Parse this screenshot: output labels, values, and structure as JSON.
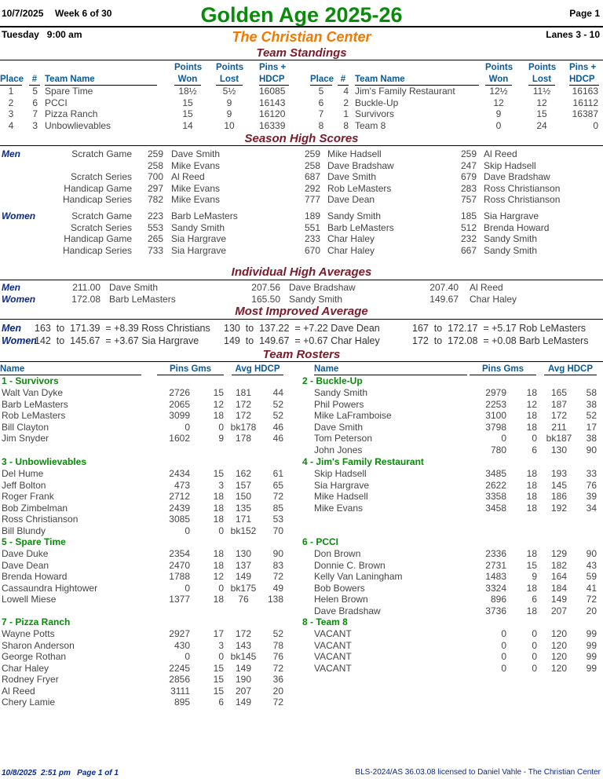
{
  "header": {
    "date": "10/7/2025",
    "week": "Week 6 of 30",
    "title": "Golden Age 2025-26",
    "page": "Page 1",
    "day_time": "Tuesday   9:00 am",
    "center": "The Christian Center",
    "lanes": "Lanes 3 - 10"
  },
  "standings": {
    "title": "Team Standings",
    "headers": {
      "place": "Place",
      "num": "#",
      "team": "Team Name",
      "points": "Points",
      "won": "Won",
      "lost": "Lost",
      "pins": "Pins +",
      "hdcp": "HDCP"
    },
    "left": [
      {
        "place": "1",
        "num": "5",
        "team": "Spare Time",
        "won": "18½",
        "lost": "5½",
        "pins": "16085"
      },
      {
        "place": "2",
        "num": "6",
        "team": "PCCI",
        "won": "15",
        "lost": "9",
        "pins": "16143"
      },
      {
        "place": "3",
        "num": "7",
        "team": "Pizza Ranch",
        "won": "15",
        "lost": "9",
        "pins": "16120"
      },
      {
        "place": "4",
        "num": "3",
        "team": "Unbowlievables",
        "won": "14",
        "lost": "10",
        "pins": "16339"
      }
    ],
    "right": [
      {
        "place": "5",
        "num": "4",
        "team": "Jim's Family Restaurant",
        "won": "12½",
        "lost": "11½",
        "pins": "16163"
      },
      {
        "place": "6",
        "num": "2",
        "team": "Buckle-Up",
        "won": "12",
        "lost": "12",
        "pins": "16112"
      },
      {
        "place": "7",
        "num": "1",
        "team": "Survivors",
        "won": "9",
        "lost": "15",
        "pins": "16387"
      },
      {
        "place": "8",
        "num": "8",
        "team": "Team 8",
        "won": "0",
        "lost": "24",
        "pins": "0"
      }
    ]
  },
  "high_scores": {
    "title": "Season High Scores",
    "groups": [
      {
        "label": "Men",
        "rows": [
          {
            "cat": "Scratch Game",
            "entries": [
              [
                "259",
                "Dave Smith"
              ],
              [
                "259",
                "Mike Hadsell"
              ],
              [
                "259",
                "Al Reed"
              ]
            ]
          },
          {
            "cat": "",
            "entries": [
              [
                "258",
                "Mike Evans"
              ],
              [
                "258",
                "Dave Bradshaw"
              ],
              [
                "247",
                "Skip Hadsell"
              ]
            ]
          },
          {
            "cat": "Scratch Series",
            "entries": [
              [
                "700",
                "Al Reed"
              ],
              [
                "687",
                "Dave Smith"
              ],
              [
                "679",
                "Dave Bradshaw"
              ]
            ]
          },
          {
            "cat": "Handicap Game",
            "entries": [
              [
                "297",
                "Mike Evans"
              ],
              [
                "292",
                "Rob LeMasters"
              ],
              [
                "283",
                "Ross Christianson"
              ]
            ]
          },
          {
            "cat": "Handicap Series",
            "entries": [
              [
                "782",
                "Mike Evans"
              ],
              [
                "777",
                "Dave Dean"
              ],
              [
                "757",
                "Ross Christianson"
              ]
            ]
          }
        ]
      },
      {
        "label": "Women",
        "rows": [
          {
            "cat": "Scratch Game",
            "entries": [
              [
                "223",
                "Barb LeMasters"
              ],
              [
                "189",
                "Sandy Smith"
              ],
              [
                "185",
                "Sia Hargrave"
              ]
            ]
          },
          {
            "cat": "Scratch Series",
            "entries": [
              [
                "553",
                "Sandy Smith"
              ],
              [
                "551",
                "Barb LeMasters"
              ],
              [
                "512",
                "Brenda Howard"
              ]
            ]
          },
          {
            "cat": "Handicap Game",
            "entries": [
              [
                "265",
                "Sia Hargrave"
              ],
              [
                "233",
                "Char Haley"
              ],
              [
                "232",
                "Sandy Smith"
              ]
            ]
          },
          {
            "cat": "Handicap Series",
            "entries": [
              [
                "733",
                "Sia Hargrave"
              ],
              [
                "670",
                "Char Haley"
              ],
              [
                "667",
                "Sandy Smith"
              ]
            ]
          }
        ]
      }
    ]
  },
  "high_averages": {
    "title": "Individual High Averages",
    "rows": [
      {
        "label": "Men",
        "entries": [
          [
            "211.00",
            "Dave Smith"
          ],
          [
            "207.56",
            "Dave Bradshaw"
          ],
          [
            "207.40",
            "Al Reed"
          ]
        ]
      },
      {
        "label": "Women",
        "entries": [
          [
            "172.08",
            "Barb LeMasters"
          ],
          [
            "165.50",
            "Sandy Smith"
          ],
          [
            "149.67",
            "Char Haley"
          ]
        ]
      }
    ]
  },
  "most_improved": {
    "title": "Most Improved Average",
    "rows": [
      {
        "label": "Men",
        "entries": [
          "163  to  171.39  = +8.39 Ross Christians",
          "130  to  137.22  = +7.22 Dave Dean",
          "167  to  172.17  = +5.17 Rob LeMasters"
        ]
      },
      {
        "label": "Women",
        "entries": [
          "142  to  145.67  = +3.67 Sia Hargrave",
          "149  to  149.67  = +0.67 Char Haley",
          "172  to  172.08  = +0.08 Barb LeMasters"
        ]
      }
    ]
  },
  "rosters": {
    "title": "Team Rosters",
    "headers": {
      "name": "Name",
      "pins_gms": "Pins  Gms",
      "avg_hdcp": "Avg HDCP"
    },
    "left": [
      {
        "team": "1 - Survivors",
        "players": [
          [
            "Walt Van Dyke",
            "2726",
            "15",
            "181",
            "44"
          ],
          [
            "Barb LeMasters",
            "2065",
            "12",
            "172",
            "52"
          ],
          [
            "Rob LeMasters",
            "3099",
            "18",
            "172",
            "52"
          ],
          [
            "Bill Clayton",
            "0",
            "0",
            "bk178",
            "46"
          ],
          [
            "Jim Snyder",
            "1602",
            "9",
            "178",
            "46"
          ]
        ]
      },
      {
        "team": "3 - Unbowlievables",
        "players": [
          [
            "Del Hume",
            "2434",
            "15",
            "162",
            "61"
          ],
          [
            "Jeff Bolton",
            "473",
            "3",
            "157",
            "65"
          ],
          [
            "Roger Frank",
            "2712",
            "18",
            "150",
            "72"
          ],
          [
            "Bob Zimbelman",
            "2439",
            "18",
            "135",
            "85"
          ],
          [
            "Ross Christianson",
            "3085",
            "18",
            "171",
            "53"
          ],
          [
            "Bill Blundy",
            "0",
            "0",
            "bk152",
            "70"
          ]
        ]
      },
      {
        "team": "5 - Spare Time",
        "players": [
          [
            "Dave Duke",
            "2354",
            "18",
            "130",
            "90"
          ],
          [
            "Dave Dean",
            "2470",
            "18",
            "137",
            "83"
          ],
          [
            "Brenda Howard",
            "1788",
            "12",
            "149",
            "72"
          ],
          [
            "Cassaundra Hightower",
            "0",
            "0",
            "bk175",
            "49"
          ],
          [
            "Lowell Miese",
            "1377",
            "18",
            "76",
            "138"
          ]
        ]
      },
      {
        "team": "7 - Pizza Ranch",
        "players": [
          [
            "Wayne Potts",
            "2927",
            "17",
            "172",
            "52"
          ],
          [
            "Sharon Anderson",
            "430",
            "3",
            "143",
            "78"
          ],
          [
            "George Rothan",
            "0",
            "0",
            "bk145",
            "76"
          ],
          [
            "Char Haley",
            "2245",
            "15",
            "149",
            "72"
          ],
          [
            "Rodney Fryer",
            "2856",
            "15",
            "190",
            "36"
          ],
          [
            "Al Reed",
            "3111",
            "15",
            "207",
            "20"
          ],
          [
            "Chery Lamie",
            "895",
            "6",
            "149",
            "72"
          ]
        ]
      }
    ],
    "right": [
      {
        "team": "2 - Buckle-Up",
        "players": [
          [
            "Sandy Smith",
            "2979",
            "18",
            "165",
            "58"
          ],
          [
            "Phil Powers",
            "2253",
            "12",
            "187",
            "38"
          ],
          [
            "Mike LaFramboise",
            "3100",
            "18",
            "172",
            "52"
          ],
          [
            "Dave Smith",
            "3798",
            "18",
            "211",
            "17"
          ],
          [
            "Tom Peterson",
            "0",
            "0",
            "bk187",
            "38"
          ],
          [
            "John Jones",
            "780",
            "6",
            "130",
            "90"
          ]
        ]
      },
      {
        "team": "4 - Jim's Family Restaurant",
        "players": [
          [
            "Skip Hadsell",
            "3485",
            "18",
            "193",
            "33"
          ],
          [
            "Sia Hargrave",
            "2622",
            "18",
            "145",
            "76"
          ],
          [
            "Mike Hadsell",
            "3358",
            "18",
            "186",
            "39"
          ],
          [
            "Mike Evans",
            "3458",
            "18",
            "192",
            "34"
          ]
        ]
      },
      {
        "team": "6 - PCCI",
        "players": [
          [
            "Don Brown",
            "2336",
            "18",
            "129",
            "90"
          ],
          [
            "Donnie C. Brown",
            "2731",
            "15",
            "182",
            "43"
          ],
          [
            "Kelly Van Laningham",
            "1483",
            "9",
            "164",
            "59"
          ],
          [
            "Bob Bowers",
            "3324",
            "18",
            "184",
            "41"
          ],
          [
            "Helen Brown",
            "896",
            "6",
            "149",
            "72"
          ],
          [
            "Dave Bradshaw",
            "3736",
            "18",
            "207",
            "20"
          ]
        ]
      },
      {
        "team": "8 - Team 8",
        "players": [
          [
            "VACANT",
            "0",
            "0",
            "120",
            "99"
          ],
          [
            "VACANT",
            "0",
            "0",
            "120",
            "99"
          ],
          [
            "VACANT",
            "0",
            "0",
            "120",
            "99"
          ],
          [
            "VACANT",
            "0",
            "0",
            "120",
            "99"
          ]
        ]
      }
    ]
  },
  "footer": {
    "printed": "10/8/2025  2:51 pm   Page 1 of 1",
    "license": "BLS-2024/AS 36.03.08 licensed to Daniel Vahle - The Christian Center"
  }
}
